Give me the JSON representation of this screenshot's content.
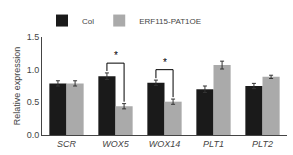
{
  "chart_data": {
    "type": "bar",
    "categories": [
      "SCR",
      "WOX5",
      "WOX14",
      "PLT1",
      "PLT2"
    ],
    "series": [
      {
        "name": "Col",
        "color": "#1a1a1a",
        "values": [
          0.79,
          0.9,
          0.8,
          0.7,
          0.75
        ],
        "errors": [
          0.04,
          0.05,
          0.04,
          0.05,
          0.04
        ]
      },
      {
        "name": "ERF115-PAT1OE",
        "color": "#aaaaaa",
        "values": [
          0.79,
          0.44,
          0.51,
          1.07,
          0.89
        ],
        "errors": [
          0.04,
          0.04,
          0.04,
          0.06,
          0.025
        ]
      }
    ],
    "ylabel": "Relative expression",
    "ylim": [
      0,
      1.5
    ],
    "yticks": [
      {
        "value": 0,
        "label": "0.0"
      },
      0.5,
      {
        "value": 1.0,
        "label": "1.0"
      },
      1.5
    ],
    "annotations": [
      {
        "text": "*",
        "category": "WOX5",
        "y": 1.1
      },
      {
        "text": "*",
        "category": "WOX14",
        "y": 1.0
      }
    ],
    "grid": false,
    "legend": "upper left"
  }
}
